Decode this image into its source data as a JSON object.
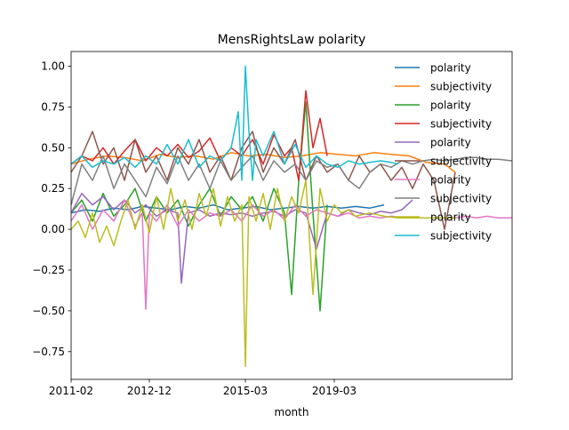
{
  "chart_data": {
    "type": "line",
    "title": "MensRightsLaw polarity",
    "xlabel": "month",
    "ylabel": "",
    "xlim": [
      0,
      124
    ],
    "ylim": [
      -0.92,
      1.09
    ],
    "x_ticks": [
      {
        "x": 0,
        "label": "2011-02"
      },
      {
        "x": 22,
        "label": "2012-12"
      },
      {
        "x": 49,
        "label": "2015-03"
      },
      {
        "x": 74,
        "label": "2019-03"
      }
    ],
    "y_ticks": [
      {
        "y": 1.0,
        "label": "1.00"
      },
      {
        "y": 0.75,
        "label": "0.75"
      },
      {
        "y": 0.5,
        "label": "0.50"
      },
      {
        "y": 0.25,
        "label": "0.25"
      },
      {
        "y": 0.0,
        "label": "0.00"
      },
      {
        "y": -0.25,
        "label": "−0.25"
      },
      {
        "y": -0.5,
        "label": "−0.50"
      },
      {
        "y": -0.75,
        "label": "−0.75"
      }
    ],
    "legend_position": "right",
    "series": [
      {
        "name": "polarity",
        "color": "#1f77b4",
        "x": [
          0,
          4,
          8,
          12,
          16,
          20,
          24,
          28,
          32,
          36,
          40,
          44,
          48,
          52,
          56,
          60,
          64,
          68,
          72,
          76,
          80,
          84,
          88
        ],
        "y": [
          0.1,
          0.12,
          0.11,
          0.13,
          0.12,
          0.14,
          0.13,
          0.12,
          0.14,
          0.13,
          0.15,
          0.12,
          0.13,
          0.14,
          0.12,
          0.13,
          0.14,
          0.13,
          0.14,
          0.13,
          0.14,
          0.13,
          0.15
        ]
      },
      {
        "name": "subjectivity",
        "color": "#ff7f0e",
        "x": [
          0,
          5,
          10,
          15,
          20,
          25,
          30,
          35,
          40,
          45,
          50,
          55,
          60,
          65,
          70,
          75,
          80,
          85,
          90,
          95,
          100,
          105,
          108
        ],
        "y": [
          0.4,
          0.43,
          0.45,
          0.44,
          0.42,
          0.46,
          0.44,
          0.45,
          0.43,
          0.47,
          0.45,
          0.46,
          0.44,
          0.45,
          0.47,
          0.46,
          0.45,
          0.47,
          0.46,
          0.45,
          0.41,
          0.4,
          0.35
        ]
      },
      {
        "name": "polarity",
        "color": "#2ca02c",
        "x": [
          0,
          3,
          6,
          9,
          12,
          15,
          18,
          21,
          24,
          27,
          30,
          33,
          36,
          39,
          42,
          45,
          48,
          51,
          54,
          57,
          60,
          62,
          64,
          66,
          68,
          70,
          72
        ],
        "y": [
          0.1,
          0.18,
          0.05,
          0.22,
          0.08,
          0.15,
          0.25,
          0.05,
          0.2,
          0.1,
          0.18,
          0.02,
          0.15,
          0.25,
          0.08,
          0.2,
          0.12,
          0.2,
          0.05,
          0.25,
          0.1,
          -0.4,
          0.3,
          0.78,
          0.1,
          -0.5,
          0.15
        ]
      },
      {
        "name": "subjectivity",
        "color": "#d62728",
        "x": [
          0,
          3,
          6,
          9,
          12,
          15,
          18,
          21,
          24,
          27,
          30,
          33,
          36,
          39,
          42,
          45,
          48,
          51,
          54,
          57,
          60,
          62,
          64,
          66,
          68,
          70,
          72
        ],
        "y": [
          0.4,
          0.45,
          0.42,
          0.5,
          0.4,
          0.48,
          0.55,
          0.42,
          0.5,
          0.45,
          0.52,
          0.44,
          0.48,
          0.56,
          0.42,
          0.5,
          0.45,
          0.55,
          0.4,
          0.58,
          0.45,
          0.5,
          0.3,
          0.85,
          0.5,
          0.68,
          0.45
        ]
      },
      {
        "name": "polarity",
        "color": "#9467bd",
        "x": [
          0,
          3,
          6,
          9,
          12,
          15,
          18,
          21,
          24,
          27,
          30,
          31,
          33,
          36,
          39,
          42,
          45,
          48,
          51,
          54,
          57,
          60,
          63,
          66,
          69,
          72,
          75,
          78,
          81,
          84,
          87,
          90,
          93,
          96
        ],
        "y": [
          0.1,
          0.22,
          0.15,
          0.2,
          0.12,
          0.18,
          0.1,
          0.15,
          0.08,
          0.12,
          0.1,
          -0.33,
          0.1,
          0.12,
          0.08,
          0.1,
          0.09,
          0.1,
          0.08,
          0.1,
          0.11,
          0.08,
          0.12,
          0.1,
          -0.12,
          0.1,
          0.08,
          0.12,
          0.1,
          0.09,
          0.11,
          0.1,
          0.12,
          0.18
        ]
      },
      {
        "name": "subjectivity",
        "color": "#8c564b",
        "x": [
          0,
          3,
          6,
          9,
          12,
          15,
          18,
          21,
          24,
          27,
          30,
          33,
          36,
          39,
          42,
          45,
          48,
          51,
          54,
          57,
          60,
          63,
          66,
          69,
          72,
          75,
          78,
          81,
          84,
          87,
          90,
          93,
          96,
          99,
          102,
          105,
          108
        ],
        "y": [
          0.35,
          0.45,
          0.6,
          0.4,
          0.5,
          0.3,
          0.55,
          0.35,
          0.45,
          0.3,
          0.5,
          0.4,
          0.55,
          0.35,
          0.45,
          0.3,
          0.5,
          0.6,
          0.35,
          0.5,
          0.4,
          0.55,
          0.3,
          0.45,
          0.35,
          0.4,
          0.3,
          0.45,
          0.35,
          0.4,
          0.3,
          0.38,
          0.25,
          0.4,
          0.3,
          0.0,
          0.35
        ]
      },
      {
        "name": "polarity",
        "color": "#e377c2",
        "x": [
          0,
          3,
          6,
          9,
          12,
          15,
          18,
          20,
          21,
          22,
          24,
          27,
          30,
          33,
          36,
          39,
          42,
          45,
          48,
          51,
          54,
          57,
          60,
          63,
          66,
          69,
          72,
          75,
          78,
          81,
          84,
          87,
          90,
          93,
          96,
          99,
          102,
          105,
          108,
          111,
          114,
          117,
          120,
          124
        ],
        "y": [
          0.05,
          0.15,
          0.0,
          0.12,
          0.05,
          0.18,
          0.02,
          0.1,
          -0.49,
          0.1,
          0.05,
          0.15,
          0.02,
          0.12,
          0.05,
          0.1,
          0.08,
          0.12,
          0.05,
          0.15,
          0.08,
          0.12,
          0.06,
          0.15,
          0.08,
          0.12,
          0.1,
          0.08,
          0.1,
          0.07,
          0.08,
          0.07,
          0.08,
          0.07,
          0.07,
          0.07,
          0.07,
          0.07,
          0.07,
          0.08,
          0.07,
          0.08,
          0.07,
          0.07
        ]
      },
      {
        "name": "subjectivity",
        "color": "#7f7f7f",
        "x": [
          0,
          3,
          6,
          9,
          12,
          15,
          18,
          21,
          24,
          27,
          30,
          33,
          36,
          39,
          42,
          45,
          48,
          51,
          54,
          57,
          60,
          63,
          66,
          69,
          72,
          75,
          78,
          81,
          84,
          87,
          90,
          93,
          96,
          99,
          102,
          105,
          108,
          111,
          114,
          117,
          120,
          124
        ],
        "y": [
          0.15,
          0.4,
          0.3,
          0.45,
          0.25,
          0.4,
          0.3,
          0.2,
          0.38,
          0.28,
          0.45,
          0.3,
          0.4,
          0.25,
          0.42,
          0.3,
          0.38,
          0.45,
          0.3,
          0.42,
          0.35,
          0.4,
          0.3,
          0.42,
          0.38,
          0.4,
          0.3,
          0.25,
          0.35,
          0.4,
          0.38,
          0.42,
          0.4,
          0.42,
          0.43,
          0.42,
          0.43,
          0.44,
          0.44,
          0.43,
          0.43,
          0.42
        ]
      },
      {
        "name": "polarity",
        "color": "#bcbd22",
        "x": [
          0,
          2,
          4,
          6,
          8,
          10,
          12,
          14,
          16,
          18,
          20,
          22,
          24,
          26,
          28,
          30,
          32,
          34,
          36,
          38,
          40,
          42,
          44,
          46,
          48,
          49,
          50,
          52,
          54,
          56,
          58,
          60,
          62,
          64,
          66,
          68,
          70,
          72,
          74,
          76,
          78,
          80,
          84,
          88,
          92,
          96,
          100,
          104,
          108
        ],
        "y": [
          0.0,
          0.05,
          -0.05,
          0.1,
          -0.08,
          0.02,
          -0.1,
          0.05,
          0.18,
          0.0,
          0.15,
          -0.02,
          0.2,
          0.0,
          0.25,
          0.05,
          0.18,
          0.0,
          0.22,
          0.08,
          0.25,
          0.02,
          0.2,
          0.05,
          0.15,
          -0.84,
          0.2,
          0.05,
          0.22,
          0.0,
          0.25,
          0.05,
          0.2,
          0.1,
          0.3,
          -0.4,
          0.25,
          0.05,
          0.15,
          0.1,
          0.12,
          0.08,
          0.1,
          0.08,
          0.07,
          0.07,
          0.07,
          0.07,
          0.07
        ]
      },
      {
        "name": "subjectivity",
        "color": "#17becf",
        "x": [
          0,
          3,
          6,
          9,
          12,
          15,
          18,
          21,
          24,
          27,
          30,
          33,
          36,
          39,
          42,
          45,
          47,
          48,
          49,
          50,
          51,
          52,
          54,
          57,
          60,
          63,
          66,
          69,
          72,
          75,
          78,
          81,
          84,
          87,
          90,
          92
        ],
        "y": [
          0.4,
          0.45,
          0.38,
          0.42,
          0.4,
          0.44,
          0.38,
          0.45,
          0.4,
          0.52,
          0.4,
          0.55,
          0.38,
          0.45,
          0.42,
          0.5,
          0.72,
          0.3,
          1.0,
          0.6,
          0.3,
          0.55,
          0.45,
          0.6,
          0.4,
          0.52,
          0.38,
          0.45,
          0.4,
          0.38,
          0.42,
          0.4,
          0.41,
          0.42,
          0.41,
          0.4
        ]
      }
    ]
  }
}
